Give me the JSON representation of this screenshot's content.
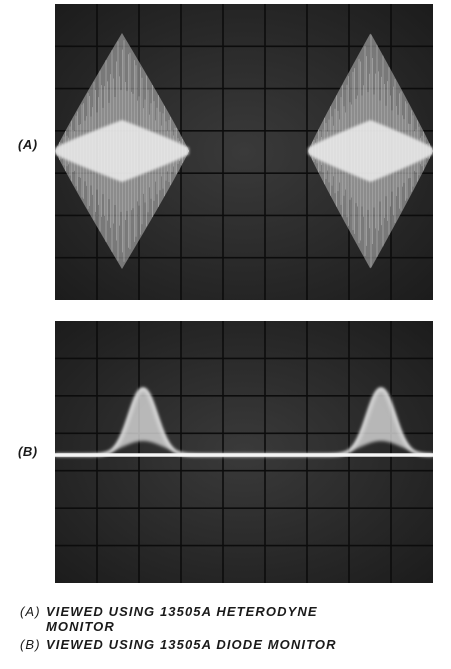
{
  "panels": [
    {
      "label": "(A)"
    },
    {
      "label": "(B)"
    }
  ],
  "captions": [
    {
      "tag": "(A)",
      "line1": "VIEWED USING 13505A HETERODYNE",
      "line2": "MONITOR"
    },
    {
      "tag": "(B)",
      "line1": "VIEWED USING 13505A DIODE MONITOR"
    }
  ],
  "colors": {
    "screen_background": "#2b2b2b",
    "graticule": "#0c0c0c",
    "trace": "#e8e8e8",
    "text": "#1a1a1a"
  }
}
